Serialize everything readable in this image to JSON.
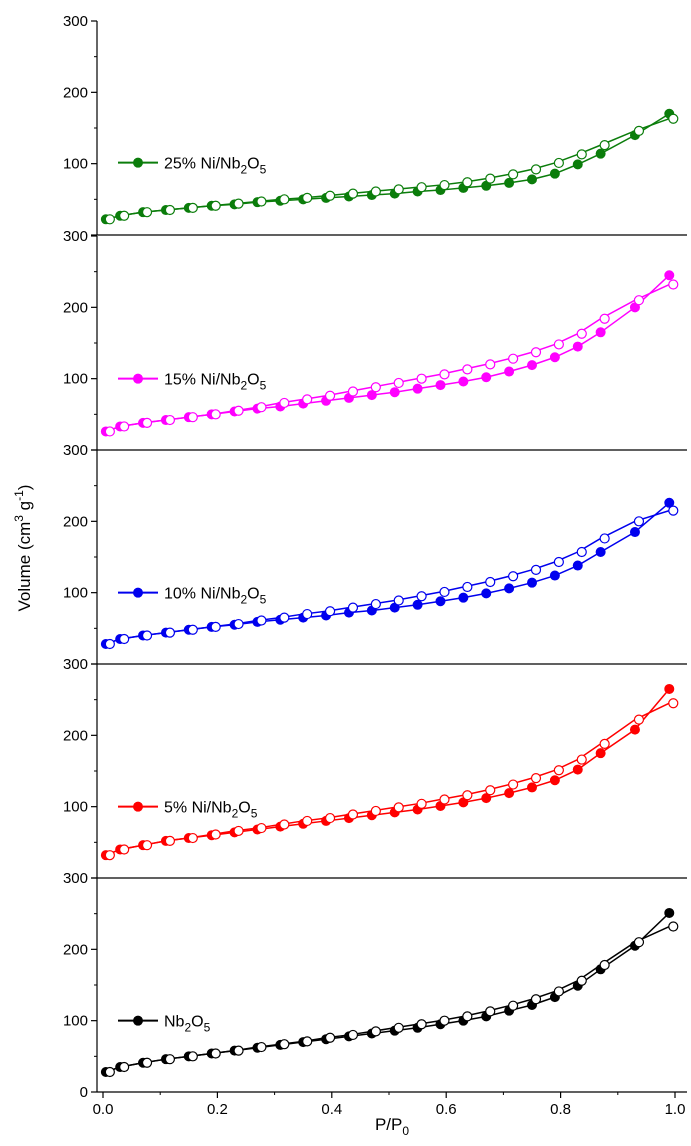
{
  "chart_data": {
    "type": "line",
    "layout": "stacked-panels",
    "xlabel": "P/P0",
    "xlabel_main": "P/P",
    "xlabel_sub": "0",
    "ylabel": "Volume (cm3 g-1)",
    "ylabel_parts": {
      "a": "Volume (cm",
      "b": "3",
      "c": " g",
      "d": "-1",
      "e": ")"
    },
    "xlim": [
      0.0,
      1.0
    ],
    "xticks": [
      "0.0",
      "0.2",
      "0.4",
      "0.6",
      "0.8",
      "1.0"
    ],
    "ylim": [
      0,
      300
    ],
    "yticks": [
      "0",
      "100",
      "200",
      "300"
    ],
    "legend_position": "left",
    "marker_note": "filled = adsorption, open = desorption",
    "panels": [
      {
        "label": "25% Ni/Nb2O5",
        "legend_parts": [
          "25% Ni/Nb",
          "2",
          "O",
          "5"
        ],
        "color": "#0b7d0b",
        "adsorption_y": [
          22,
          27,
          32,
          35,
          38,
          41,
          43,
          46,
          48,
          50,
          52,
          54,
          56,
          58,
          61,
          63,
          66,
          69,
          73,
          78,
          86,
          99,
          114,
          140,
          170
        ],
        "desorption_y": [
          22,
          27,
          32,
          35,
          38,
          41,
          44,
          47,
          50,
          52,
          55,
          58,
          61,
          64,
          67,
          70,
          74,
          79,
          85,
          92,
          101,
          113,
          126,
          146,
          163
        ]
      },
      {
        "label": "15% Ni/Nb2O5",
        "legend_parts": [
          "15% Ni/Nb",
          "2",
          "O",
          "5"
        ],
        "color": "#ff00ff",
        "adsorption_y": [
          26,
          33,
          38,
          42,
          46,
          50,
          54,
          58,
          61,
          65,
          69,
          73,
          77,
          81,
          86,
          91,
          96,
          102,
          110,
          119,
          130,
          145,
          165,
          200,
          245
        ],
        "desorption_y": [
          26,
          33,
          38,
          42,
          46,
          50,
          55,
          60,
          66,
          71,
          76,
          82,
          88,
          94,
          100,
          106,
          113,
          120,
          128,
          137,
          148,
          163,
          184,
          210,
          232
        ]
      },
      {
        "label": "10% Ni/Nb2O5",
        "legend_parts": [
          "10% Ni/Nb",
          "2",
          "O",
          "5"
        ],
        "color": "#0000ee",
        "adsorption_y": [
          28,
          35,
          40,
          44,
          48,
          52,
          55,
          59,
          62,
          65,
          68,
          72,
          75,
          79,
          83,
          88,
          93,
          99,
          106,
          114,
          124,
          138,
          157,
          185,
          226
        ],
        "desorption_y": [
          28,
          35,
          40,
          44,
          48,
          52,
          56,
          61,
          65,
          70,
          74,
          79,
          84,
          89,
          95,
          101,
          108,
          115,
          123,
          132,
          143,
          157,
          176,
          200,
          215
        ]
      },
      {
        "label": "5% Ni/Nb2O5",
        "legend_parts": [
          "5% Ni/Nb",
          "2",
          "O",
          "5"
        ],
        "color": "#ff0000",
        "adsorption_y": [
          32,
          40,
          46,
          52,
          56,
          60,
          64,
          68,
          72,
          76,
          80,
          84,
          88,
          92,
          96,
          101,
          106,
          112,
          119,
          127,
          137,
          152,
          175,
          208,
          265
        ],
        "desorption_y": [
          32,
          40,
          46,
          52,
          56,
          61,
          66,
          70,
          75,
          80,
          84,
          89,
          94,
          99,
          104,
          110,
          116,
          123,
          131,
          140,
          151,
          166,
          188,
          222,
          245
        ]
      },
      {
        "label": "Nb2O5",
        "legend_parts": [
          "Nb",
          "2",
          "O",
          "5"
        ],
        "color": "#000000",
        "adsorption_y": [
          28,
          35,
          41,
          46,
          50,
          54,
          58,
          62,
          66,
          70,
          74,
          78,
          82,
          86,
          90,
          95,
          100,
          106,
          114,
          122,
          133,
          149,
          172,
          205,
          251
        ],
        "desorption_y": [
          28,
          35,
          41,
          46,
          50,
          54,
          58,
          63,
          67,
          71,
          76,
          80,
          85,
          90,
          95,
          100,
          106,
          113,
          121,
          130,
          141,
          156,
          178,
          210,
          232
        ]
      }
    ],
    "x": [
      0.005,
      0.03,
      0.07,
      0.11,
      0.15,
      0.19,
      0.23,
      0.27,
      0.31,
      0.35,
      0.39,
      0.43,
      0.47,
      0.51,
      0.55,
      0.59,
      0.63,
      0.67,
      0.71,
      0.75,
      0.79,
      0.83,
      0.87,
      0.93,
      0.99
    ]
  }
}
